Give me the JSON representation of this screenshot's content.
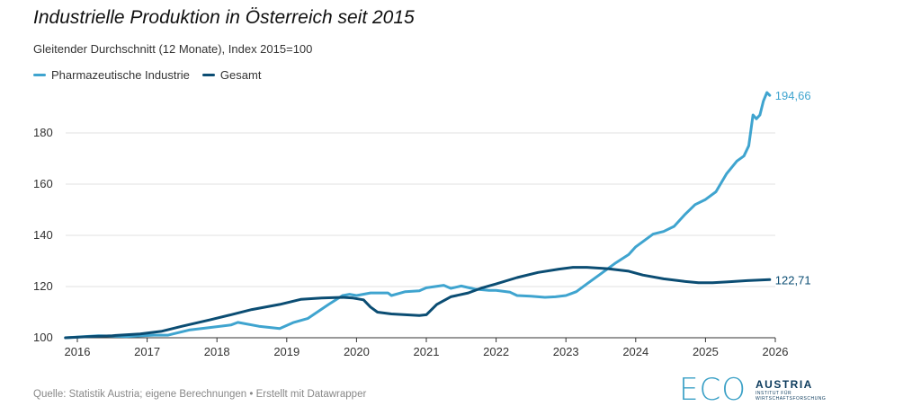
{
  "title": "Industrielle Produktion in Österreich seit 2015",
  "subtitle": "Gleitender Durchschnitt (12 Monate), Index 2015=100",
  "source": "Quelle: Statistik Austria; eigene Berechnungen • Erstellt mit Datawrapper",
  "logo": {
    "main": "ECO",
    "brand": "AUSTRIA",
    "sub1": "INSTITUT FÜR",
    "sub2": "WIRTSCHAFTSFORSCHUNG"
  },
  "colors": {
    "pharma": "#3fa4cf",
    "gesamt": "#0b4d73",
    "grid": "#e2e2e2"
  },
  "chart_data": {
    "type": "line",
    "title": "Industrielle Produktion in Österreich seit 2015",
    "subtitle": "Gleitender Durchschnitt (12 Monate), Index 2015=100",
    "xlabel": "",
    "ylabel": "",
    "xlim": [
      2015.833,
      2025.92
    ],
    "ylim": [
      100,
      196
    ],
    "yticks": [
      100,
      120,
      140,
      160,
      180
    ],
    "ytick_labels": [
      "100",
      "120",
      "140",
      "160",
      "180"
    ],
    "xticks": [
      2016,
      2017,
      2018,
      2019,
      2020,
      2021,
      2022,
      2023,
      2024,
      2025,
      2026
    ],
    "xtick_labels": [
      "2016",
      "2017",
      "2018",
      "2019",
      "2020",
      "2021",
      "2022",
      "2023",
      "2024",
      "2025",
      "2026"
    ],
    "grid": "horizontal",
    "legend": "top-left",
    "series": [
      {
        "name": "Pharmazeutische Industrie",
        "color": "#3fa4cf",
        "end_label": "194,66",
        "points": [
          [
            2015.83,
            100.0
          ],
          [
            2016.3,
            100.8
          ],
          [
            2016.7,
            100.5
          ],
          [
            2017.1,
            101.0
          ],
          [
            2017.3,
            101.0
          ],
          [
            2017.6,
            103.0
          ],
          [
            2017.9,
            104.0
          ],
          [
            2018.2,
            105.0
          ],
          [
            2018.3,
            106.0
          ],
          [
            2018.6,
            104.5
          ],
          [
            2018.9,
            103.6
          ],
          [
            2019.1,
            106.0
          ],
          [
            2019.3,
            107.5
          ],
          [
            2019.6,
            113.0
          ],
          [
            2019.8,
            116.5
          ],
          [
            2019.9,
            117.0
          ],
          [
            2020.0,
            116.5
          ],
          [
            2020.2,
            117.5
          ],
          [
            2020.45,
            117.5
          ],
          [
            2020.5,
            116.5
          ],
          [
            2020.7,
            118.0
          ],
          [
            2020.9,
            118.3
          ],
          [
            2021.0,
            119.5
          ],
          [
            2021.25,
            120.5
          ],
          [
            2021.35,
            119.3
          ],
          [
            2021.5,
            120.2
          ],
          [
            2021.7,
            119.0
          ],
          [
            2021.9,
            118.5
          ],
          [
            2022.0,
            118.5
          ],
          [
            2022.2,
            117.8
          ],
          [
            2022.3,
            116.5
          ],
          [
            2022.5,
            116.2
          ],
          [
            2022.7,
            115.8
          ],
          [
            2022.85,
            116.0
          ],
          [
            2023.0,
            116.5
          ],
          [
            2023.15,
            118.0
          ],
          [
            2023.3,
            121.0
          ],
          [
            2023.5,
            125.0
          ],
          [
            2023.7,
            129.0
          ],
          [
            2023.9,
            132.5
          ],
          [
            2024.0,
            135.5
          ],
          [
            2024.25,
            140.5
          ],
          [
            2024.4,
            141.5
          ],
          [
            2024.55,
            143.5
          ],
          [
            2024.7,
            148.0
          ],
          [
            2024.85,
            152.0
          ],
          [
            2025.0,
            154.0
          ],
          [
            2025.15,
            157.0
          ],
          [
            2025.3,
            164.0
          ],
          [
            2025.45,
            169.0
          ],
          [
            2025.55,
            171.0
          ],
          [
            2025.62,
            175.0
          ],
          [
            2025.68,
            187.0
          ],
          [
            2025.73,
            185.5
          ],
          [
            2025.78,
            187.0
          ],
          [
            2025.83,
            192.5
          ],
          [
            2025.88,
            195.8
          ],
          [
            2025.92,
            194.66
          ]
        ]
      },
      {
        "name": "Gesamt",
        "color": "#0b4d73",
        "end_label": "122,71",
        "points": [
          [
            2015.83,
            100.0
          ],
          [
            2016.2,
            100.5
          ],
          [
            2016.5,
            100.8
          ],
          [
            2016.9,
            101.5
          ],
          [
            2017.2,
            102.5
          ],
          [
            2017.5,
            104.5
          ],
          [
            2017.9,
            107.0
          ],
          [
            2018.2,
            109.0
          ],
          [
            2018.5,
            111.0
          ],
          [
            2018.9,
            113.0
          ],
          [
            2019.2,
            115.0
          ],
          [
            2019.5,
            115.5
          ],
          [
            2019.8,
            115.8
          ],
          [
            2019.95,
            115.5
          ],
          [
            2020.1,
            114.8
          ],
          [
            2020.2,
            112.0
          ],
          [
            2020.3,
            110.0
          ],
          [
            2020.5,
            109.3
          ],
          [
            2020.7,
            109.0
          ],
          [
            2020.9,
            108.7
          ],
          [
            2021.0,
            109.0
          ],
          [
            2021.15,
            113.0
          ],
          [
            2021.35,
            116.0
          ],
          [
            2021.6,
            117.5
          ],
          [
            2021.8,
            119.5
          ],
          [
            2022.0,
            121.0
          ],
          [
            2022.3,
            123.5
          ],
          [
            2022.6,
            125.5
          ],
          [
            2022.9,
            126.8
          ],
          [
            2023.1,
            127.5
          ],
          [
            2023.3,
            127.5
          ],
          [
            2023.6,
            127.0
          ],
          [
            2023.9,
            126.0
          ],
          [
            2024.1,
            124.5
          ],
          [
            2024.4,
            123.0
          ],
          [
            2024.7,
            122.0
          ],
          [
            2024.9,
            121.5
          ],
          [
            2025.1,
            121.5
          ],
          [
            2025.3,
            121.8
          ],
          [
            2025.6,
            122.3
          ],
          [
            2025.92,
            122.71
          ]
        ]
      }
    ]
  }
}
